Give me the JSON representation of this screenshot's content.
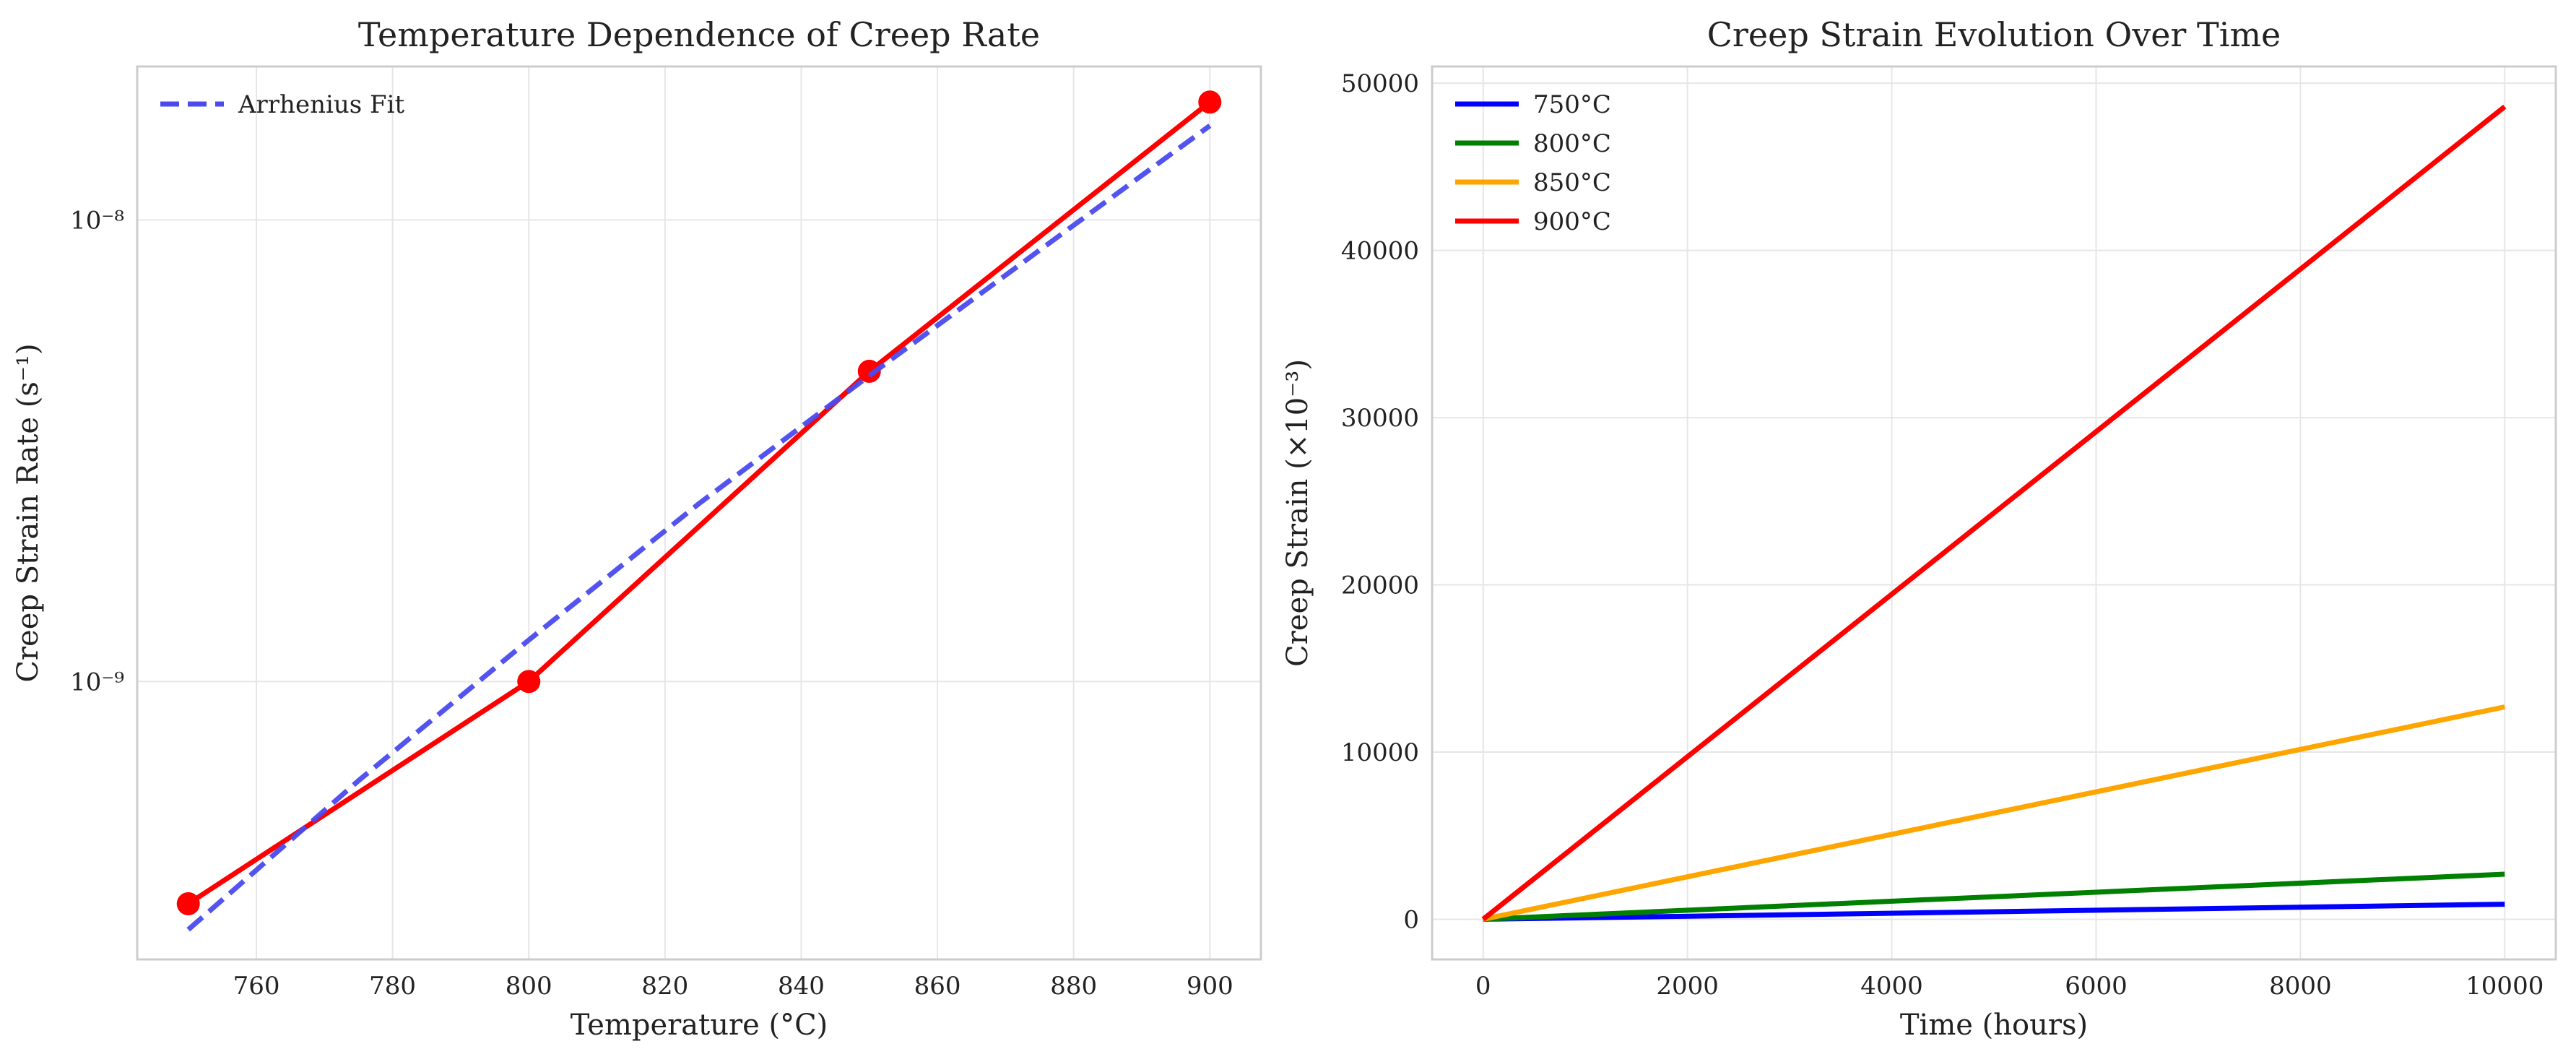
{
  "chart_data": [
    {
      "type": "line",
      "title": "Temperature Dependence of Creep Rate",
      "xlabel": "Temperature (°C)",
      "ylabel": "Creep Strain Rate (s⁻¹)",
      "yscale": "log",
      "xlim": [
        742.5,
        907.5
      ],
      "ylim": [
        2.5e-10,
        2.15e-08
      ],
      "x_ticks": [
        760,
        780,
        800,
        820,
        840,
        860,
        880,
        900
      ],
      "x_tick_labels": [
        "760",
        "780",
        "800",
        "820",
        "840",
        "860",
        "880",
        "900"
      ],
      "y_ticks": [
        1e-09,
        1e-08
      ],
      "y_tick_labels": [
        "10⁻⁹",
        "10⁻⁸"
      ],
      "grid": true,
      "legend_position": "upper-left",
      "series": [
        {
          "name": "",
          "x": [
            750,
            800,
            850,
            900
          ],
          "y": [
            3.3e-10,
            1e-09,
            4.7e-09,
            1.8e-08
          ],
          "color": "#ff0000",
          "style": "solid",
          "markers": true
        },
        {
          "name": "Arrhenius Fit",
          "x": [
            750,
            775,
            800,
            825,
            850,
            875,
            900
          ],
          "y": [
            2.9e-10,
            6.1e-10,
            1.23e-09,
            2.43e-09,
            4.6e-09,
            8.6e-09,
            1.6e-08
          ],
          "color": "#4a4aee",
          "style": "dashed",
          "markers": false
        }
      ]
    },
    {
      "type": "line",
      "title": "Creep Strain Evolution Over Time",
      "xlabel": "Time (hours)",
      "ylabel": "Creep Strain (×10⁻³)",
      "yscale": "linear",
      "xlim": [
        -500,
        10500
      ],
      "ylim": [
        -2400,
        51000
      ],
      "x_ticks": [
        0,
        2000,
        4000,
        6000,
        8000,
        10000
      ],
      "x_tick_labels": [
        "0",
        "2000",
        "4000",
        "6000",
        "8000",
        "10000"
      ],
      "y_ticks": [
        0,
        10000,
        20000,
        30000,
        40000,
        50000
      ],
      "y_tick_labels": [
        "0",
        "10000",
        "20000",
        "30000",
        "40000",
        "50000"
      ],
      "grid": true,
      "legend_position": "upper-left",
      "series": [
        {
          "name": "750°C",
          "x": [
            0,
            10000
          ],
          "y": [
            0,
            900
          ],
          "color": "#0000ff",
          "style": "solid",
          "markers": false
        },
        {
          "name": "800°C",
          "x": [
            0,
            10000
          ],
          "y": [
            0,
            2700
          ],
          "color": "#008000",
          "style": "solid",
          "markers": false
        },
        {
          "name": "850°C",
          "x": [
            0,
            10000
          ],
          "y": [
            0,
            12700
          ],
          "color": "#ffa500",
          "style": "solid",
          "markers": false
        },
        {
          "name": "900°C",
          "x": [
            0,
            10000
          ],
          "y": [
            0,
            48600
          ],
          "color": "#ff0000",
          "style": "solid",
          "markers": false
        }
      ]
    }
  ]
}
